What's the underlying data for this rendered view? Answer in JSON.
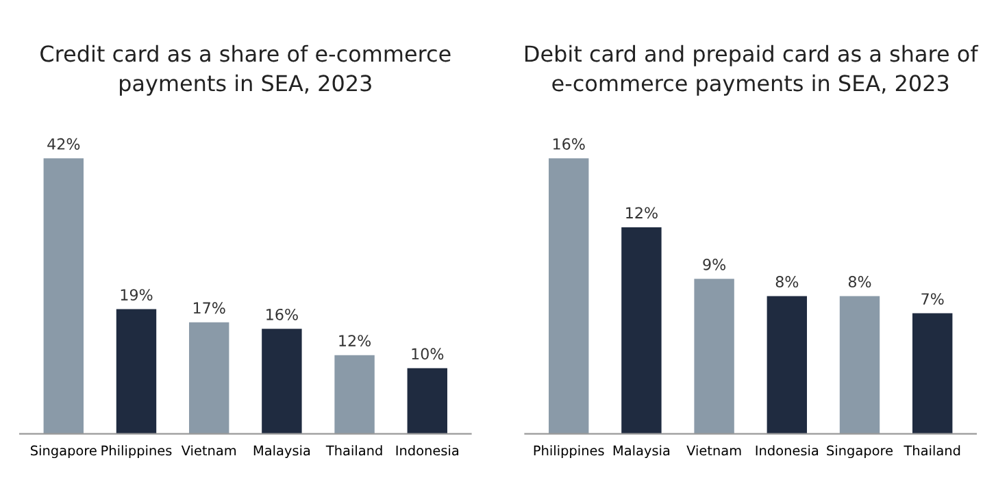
{
  "chart_data": [
    {
      "type": "bar",
      "title": "Credit card as a share of e-commerce\npayments in SEA, 2023",
      "categories": [
        "Singapore",
        "Philippines",
        "Vietnam",
        "Malaysia",
        "Thailand",
        "Indonesia"
      ],
      "values": [
        42,
        19,
        17,
        16,
        12,
        10
      ],
      "colors": [
        "#8a9aa8",
        "#1f2b40",
        "#8a9aa8",
        "#1f2b40",
        "#8a9aa8",
        "#1f2b40"
      ],
      "value_labels": [
        "42%",
        "19%",
        "17%",
        "16%",
        "12%",
        "10%"
      ]
    },
    {
      "type": "bar",
      "title": "Debit card and prepaid card as a share of\ne-commerce payments in SEA, 2023",
      "categories": [
        "Philippines",
        "Malaysia",
        "Vietnam",
        "Indonesia",
        "Singapore",
        "Thailand"
      ],
      "values": [
        16,
        12,
        9,
        8,
        8,
        7
      ],
      "colors": [
        "#8a9aa8",
        "#1f2b40",
        "#8a9aa8",
        "#1f2b40",
        "#8a9aa8",
        "#1f2b40"
      ],
      "value_labels": [
        "16%",
        "12%",
        "9%",
        "8%",
        "8%",
        "7%"
      ]
    }
  ]
}
